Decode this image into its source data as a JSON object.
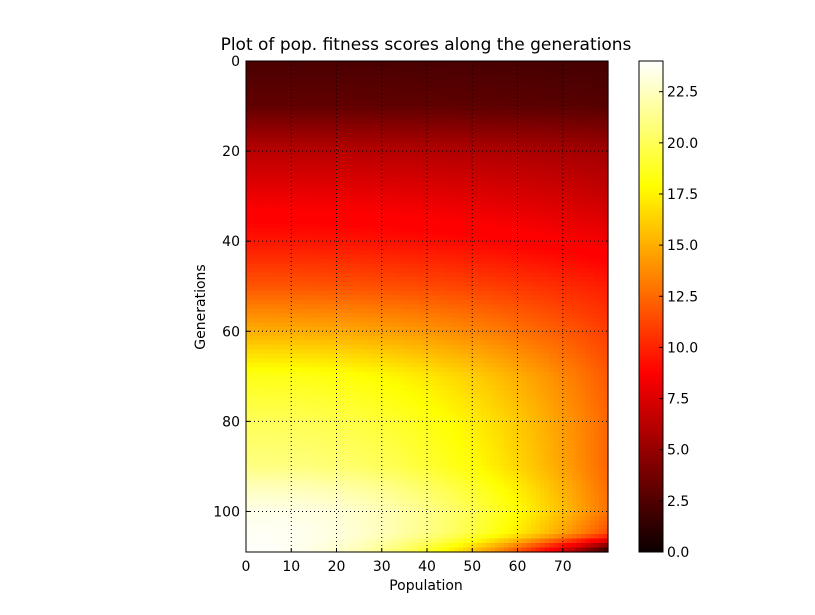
{
  "chart_data": {
    "type": "heatmap",
    "title": "Plot of pop. fitness scores along the generations",
    "xlabel": "Population",
    "ylabel": "Generations",
    "x_ticks": [
      0,
      10,
      20,
      30,
      40,
      50,
      60,
      70
    ],
    "y_ticks": [
      0,
      20,
      40,
      60,
      80,
      100
    ],
    "x_range": [
      0,
      80
    ],
    "y_range": [
      0,
      109
    ],
    "y_inverted": true,
    "grid": true,
    "colormap": "hot",
    "colorbar": {
      "range": [
        0.0,
        24.0
      ],
      "ticks": [
        "0.0",
        "2.5",
        "5.0",
        "7.5",
        "10.0",
        "12.5",
        "15.0",
        "17.5",
        "20.0",
        "22.5"
      ]
    },
    "generation_profile": {
      "generations": [
        0,
        10,
        20,
        30,
        40,
        50,
        60,
        70,
        80,
        90,
        95,
        100,
        105,
        109
      ],
      "best_score": [
        2.2,
        3.0,
        6.0,
        7.8,
        9.5,
        11.8,
        15.0,
        18.5,
        20.0,
        21.0,
        22.5,
        23.5,
        23.8,
        23.9
      ],
      "worst_score": [
        2.0,
        2.6,
        5.2,
        6.5,
        8.0,
        9.8,
        11.0,
        12.0,
        12.5,
        12.5,
        12.8,
        13.0,
        11.5,
        0.5
      ]
    }
  }
}
